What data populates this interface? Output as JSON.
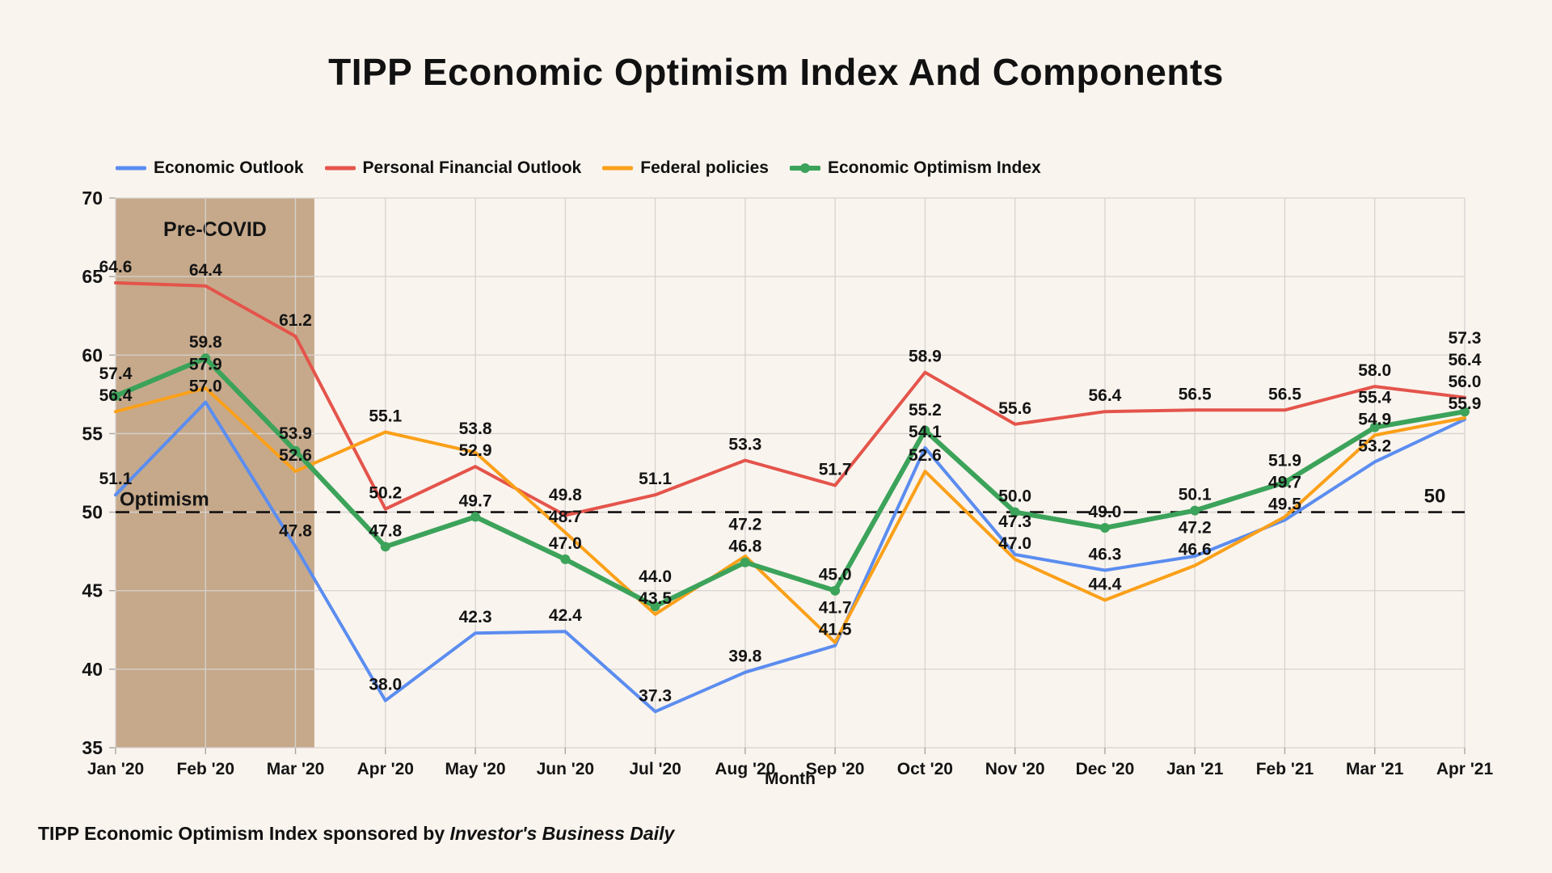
{
  "title": "TIPP Economic Optimism Index And Components",
  "footer": {
    "prefix": "TIPP Economic Optimism Index sponsored by ",
    "source": "Investor's Business Daily"
  },
  "colors": {
    "background": "#faf4ee",
    "grid": "#d6d3d0",
    "text": "#141414",
    "band": "#c6a98b",
    "reference_line": "#111111"
  },
  "chart_data": {
    "type": "line",
    "title": "TIPP Economic Optimism Index And Components",
    "xlabel": "Month",
    "ylabel": "",
    "ylim": [
      35,
      70
    ],
    "yticks": [
      35,
      40,
      45,
      50,
      55,
      60,
      65,
      70
    ],
    "grid": true,
    "legend_position": "top-left",
    "categories": [
      "Jan '20",
      "Feb '20",
      "Mar '20",
      "Apr '20",
      "May '20",
      "Jun '20",
      "Jul '20",
      "Aug '20",
      "Sep '20",
      "Oct '20",
      "Nov '20",
      "Dec '20",
      "Jan '21",
      "Feb '21",
      "Mar '21",
      "Apr '21"
    ],
    "band": {
      "label": "Pre-COVID",
      "from_index": 0,
      "to_index": 2.21,
      "color": "#c6a98b"
    },
    "reference_line": {
      "value": 50,
      "style": "dashed",
      "label_left": "Optimism",
      "label_right": "50"
    },
    "series": [
      {
        "name": "Economic Outlook",
        "color": "#5b8df0",
        "line_width": 4,
        "marker": false,
        "values": [
          51.1,
          57.0,
          47.8,
          38.0,
          42.3,
          42.4,
          37.3,
          39.8,
          41.5,
          54.1,
          47.3,
          46.3,
          47.2,
          49.5,
          53.2,
          55.9
        ]
      },
      {
        "name": "Personal Financial Outlook",
        "color": "#e4544b",
        "line_width": 4,
        "marker": false,
        "values": [
          64.6,
          64.4,
          61.2,
          50.2,
          52.9,
          49.8,
          51.1,
          53.3,
          51.7,
          58.9,
          55.6,
          56.4,
          56.5,
          56.5,
          58.0,
          57.3
        ]
      },
      {
        "name": "Federal policies",
        "color": "#fba019",
        "line_width": 4,
        "marker": false,
        "values": [
          56.4,
          57.9,
          52.6,
          55.1,
          53.8,
          48.7,
          43.5,
          47.2,
          41.7,
          52.6,
          47.0,
          44.4,
          46.6,
          49.7,
          54.9,
          56.0
        ]
      },
      {
        "name": "Economic Optimism Index",
        "color": "#3ca35a",
        "line_width": 6,
        "marker": true,
        "values": [
          57.4,
          59.8,
          53.9,
          47.8,
          49.7,
          47.0,
          44.0,
          46.8,
          45.0,
          55.2,
          50.0,
          49.0,
          50.1,
          51.9,
          55.4,
          56.4
        ]
      }
    ]
  }
}
